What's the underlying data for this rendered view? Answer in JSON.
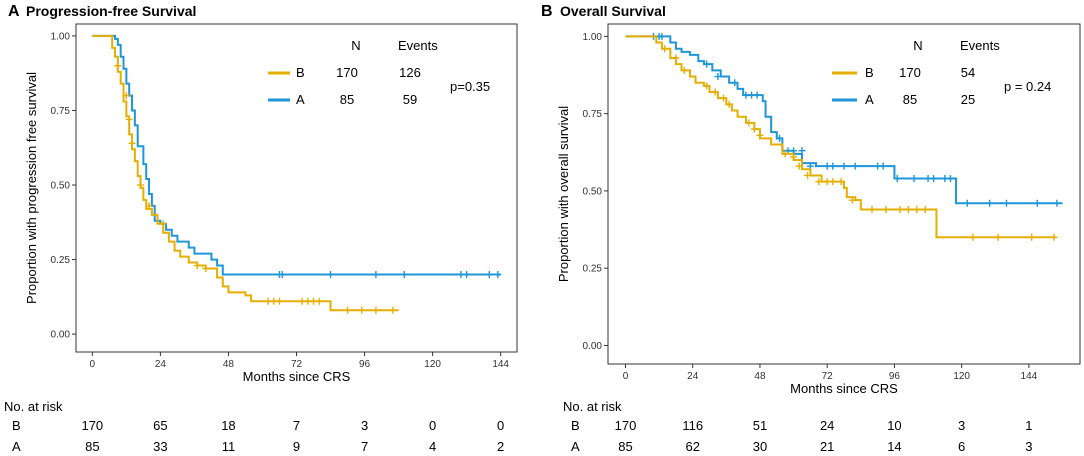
{
  "colors": {
    "B": "#E6AE00",
    "A": "#1F96DA"
  },
  "risk_header": "No. at risk",
  "chart_data": [
    {
      "letter": "A",
      "title": "Progression-free Survival",
      "type": "line",
      "xlabel": "Months since CRS",
      "ylabel": "Proportion with progression free survival",
      "xlim": [
        0,
        144
      ],
      "ylim": [
        0,
        1
      ],
      "xticks": [
        0,
        24,
        48,
        72,
        96,
        120,
        144
      ],
      "yticks": [
        0.0,
        0.25,
        0.5,
        0.75,
        1.0
      ],
      "legend": {
        "header_n": "N",
        "header_events": "Events",
        "rows": [
          {
            "group": "B",
            "n": "170",
            "events": "126",
            "color_key": "B"
          },
          {
            "group": "A",
            "n": "85",
            "events": "59",
            "color_key": "A"
          }
        ]
      },
      "pvalue": "p=0.35",
      "series": [
        {
          "name": "A",
          "color_key": "A",
          "points": [
            [
              0,
              1
            ],
            [
              6,
              1
            ],
            [
              8,
              0.99
            ],
            [
              9,
              0.97
            ],
            [
              10,
              0.93
            ],
            [
              11,
              0.89
            ],
            [
              12,
              0.84
            ],
            [
              13,
              0.8
            ],
            [
              14,
              0.75
            ],
            [
              15,
              0.7
            ],
            [
              16,
              0.63
            ],
            [
              18,
              0.57
            ],
            [
              19,
              0.52
            ],
            [
              20,
              0.47
            ],
            [
              21,
              0.43
            ],
            [
              22,
              0.38
            ],
            [
              24,
              0.37
            ],
            [
              26,
              0.35
            ],
            [
              28,
              0.33
            ],
            [
              30,
              0.31
            ],
            [
              34,
              0.29
            ],
            [
              36,
              0.27
            ],
            [
              42,
              0.25
            ],
            [
              44,
              0.23
            ],
            [
              46,
              0.2
            ],
            [
              144,
              0.2
            ]
          ],
          "censor": [
            [
              66,
              0.2
            ],
            [
              67,
              0.2
            ],
            [
              84,
              0.2
            ],
            [
              100,
              0.2
            ],
            [
              110,
              0.2
            ],
            [
              130,
              0.2
            ],
            [
              132,
              0.2
            ],
            [
              140,
              0.2
            ],
            [
              143,
              0.2
            ]
          ]
        },
        {
          "name": "B",
          "color_key": "B",
          "points": [
            [
              0,
              1
            ],
            [
              6,
              1
            ],
            [
              7,
              0.96
            ],
            [
              8,
              0.93
            ],
            [
              9,
              0.88
            ],
            [
              10,
              0.84
            ],
            [
              11,
              0.78
            ],
            [
              12,
              0.73
            ],
            [
              13,
              0.67
            ],
            [
              14,
              0.62
            ],
            [
              15,
              0.58
            ],
            [
              16,
              0.53
            ],
            [
              17,
              0.49
            ],
            [
              18,
              0.45
            ],
            [
              19,
              0.42
            ],
            [
              21,
              0.4
            ],
            [
              23,
              0.37
            ],
            [
              25,
              0.34
            ],
            [
              27,
              0.31
            ],
            [
              29,
              0.28
            ],
            [
              31,
              0.26
            ],
            [
              34,
              0.24
            ],
            [
              37,
              0.23
            ],
            [
              40,
              0.22
            ],
            [
              44,
              0.19
            ],
            [
              46,
              0.16
            ],
            [
              48,
              0.14
            ],
            [
              54,
              0.13
            ],
            [
              56,
              0.11
            ],
            [
              84,
              0.08
            ],
            [
              108,
              0.08
            ]
          ],
          "censor": [
            [
              9,
              0.9
            ],
            [
              12,
              0.8
            ],
            [
              13,
              0.72
            ],
            [
              14,
              0.64
            ],
            [
              17,
              0.5
            ],
            [
              20,
              0.43
            ],
            [
              25,
              0.37
            ],
            [
              37,
              0.23
            ],
            [
              40,
              0.22
            ],
            [
              62,
              0.11
            ],
            [
              64,
              0.11
            ],
            [
              66,
              0.11
            ],
            [
              74,
              0.11
            ],
            [
              76,
              0.11
            ],
            [
              78,
              0.11
            ],
            [
              80,
              0.11
            ],
            [
              90,
              0.08
            ],
            [
              95,
              0.08
            ],
            [
              100,
              0.08
            ],
            [
              106,
              0.08
            ]
          ]
        }
      ],
      "risk_table": {
        "times": [
          0,
          24,
          48,
          72,
          96,
          120,
          144
        ],
        "rows": [
          {
            "group": "B",
            "values": [
              "170",
              "65",
              "18",
              "7",
              "3",
              "0",
              "0"
            ]
          },
          {
            "group": "A",
            "values": [
              "85",
              "33",
              "11",
              "9",
              "7",
              "4",
              "2"
            ]
          }
        ]
      }
    },
    {
      "letter": "B",
      "title": "Overall Survival",
      "type": "line",
      "xlabel": "Months since CRS",
      "ylabel": "Proportion with overall survival",
      "xlim": [
        0,
        156
      ],
      "ylim": [
        0,
        1
      ],
      "xticks": [
        0,
        24,
        48,
        72,
        96,
        120,
        144
      ],
      "yticks": [
        0.0,
        0.25,
        0.5,
        0.75,
        1.0
      ],
      "legend": {
        "header_n": "N",
        "header_events": "Events",
        "rows": [
          {
            "group": "B",
            "n": "170",
            "events": "54",
            "color_key": "B"
          },
          {
            "group": "A",
            "n": "85",
            "events": "25",
            "color_key": "A"
          }
        ]
      },
      "pvalue": "p = 0.24",
      "series": [
        {
          "name": "A",
          "color_key": "A",
          "points": [
            [
              0,
              1
            ],
            [
              14,
              1
            ],
            [
              16,
              0.98
            ],
            [
              18,
              0.96
            ],
            [
              20,
              0.95
            ],
            [
              23,
              0.94
            ],
            [
              26,
              0.92
            ],
            [
              28,
              0.91
            ],
            [
              31,
              0.89
            ],
            [
              34,
              0.87
            ],
            [
              37,
              0.85
            ],
            [
              40,
              0.83
            ],
            [
              42,
              0.81
            ],
            [
              49,
              0.79
            ],
            [
              50,
              0.74
            ],
            [
              52,
              0.69
            ],
            [
              54,
              0.67
            ],
            [
              56,
              0.63
            ],
            [
              60,
              0.62
            ],
            [
              63,
              0.59
            ],
            [
              68,
              0.58
            ],
            [
              94,
              0.58
            ],
            [
              96,
              0.54
            ],
            [
              118,
              0.54
            ],
            [
              118,
              0.46
            ],
            [
              156,
              0.46
            ]
          ],
          "censor": [
            [
              10,
              1
            ],
            [
              12,
              1
            ],
            [
              13,
              1
            ],
            [
              29,
              0.91
            ],
            [
              33,
              0.87
            ],
            [
              39,
              0.85
            ],
            [
              43,
              0.81
            ],
            [
              45,
              0.81
            ],
            [
              47,
              0.81
            ],
            [
              55,
              0.67
            ],
            [
              58,
              0.63
            ],
            [
              60,
              0.63
            ],
            [
              63,
              0.63
            ],
            [
              66,
              0.58
            ],
            [
              72,
              0.58
            ],
            [
              74,
              0.58
            ],
            [
              78,
              0.58
            ],
            [
              82,
              0.58
            ],
            [
              90,
              0.58
            ],
            [
              92,
              0.58
            ],
            [
              97,
              0.54
            ],
            [
              103,
              0.54
            ],
            [
              108,
              0.54
            ],
            [
              110,
              0.54
            ],
            [
              114,
              0.54
            ],
            [
              116,
              0.54
            ],
            [
              122,
              0.46
            ],
            [
              130,
              0.46
            ],
            [
              136,
              0.46
            ],
            [
              147,
              0.46
            ],
            [
              154,
              0.46
            ]
          ]
        },
        {
          "name": "B",
          "color_key": "B",
          "points": [
            [
              0,
              1
            ],
            [
              9,
              1
            ],
            [
              11,
              0.98
            ],
            [
              13,
              0.96
            ],
            [
              16,
              0.93
            ],
            [
              18,
              0.91
            ],
            [
              20,
              0.89
            ],
            [
              23,
              0.87
            ],
            [
              25,
              0.85
            ],
            [
              28,
              0.84
            ],
            [
              30,
              0.82
            ],
            [
              33,
              0.8
            ],
            [
              36,
              0.78
            ],
            [
              38,
              0.76
            ],
            [
              40,
              0.74
            ],
            [
              43,
              0.72
            ],
            [
              46,
              0.7
            ],
            [
              48,
              0.67
            ],
            [
              52,
              0.65
            ],
            [
              56,
              0.62
            ],
            [
              60,
              0.6
            ],
            [
              63,
              0.57
            ],
            [
              66,
              0.55
            ],
            [
              70,
              0.53
            ],
            [
              78,
              0.51
            ],
            [
              79,
              0.48
            ],
            [
              82,
              0.47
            ],
            [
              84,
              0.44
            ],
            [
              110,
              0.44
            ],
            [
              111,
              0.35
            ],
            [
              153,
              0.35
            ]
          ],
          "censor": [
            [
              14,
              0.96
            ],
            [
              18,
              0.93
            ],
            [
              21,
              0.89
            ],
            [
              29,
              0.84
            ],
            [
              32,
              0.82
            ],
            [
              35,
              0.8
            ],
            [
              37,
              0.78
            ],
            [
              44,
              0.72
            ],
            [
              46,
              0.7
            ],
            [
              48,
              0.68
            ],
            [
              57,
              0.62
            ],
            [
              60,
              0.61
            ],
            [
              62,
              0.58
            ],
            [
              65,
              0.55
            ],
            [
              69,
              0.53
            ],
            [
              72,
              0.53
            ],
            [
              74,
              0.53
            ],
            [
              77,
              0.53
            ],
            [
              81,
              0.47
            ],
            [
              88,
              0.44
            ],
            [
              93,
              0.44
            ],
            [
              98,
              0.44
            ],
            [
              101,
              0.44
            ],
            [
              104,
              0.44
            ],
            [
              107,
              0.44
            ],
            [
              124,
              0.35
            ],
            [
              133,
              0.35
            ],
            [
              145,
              0.35
            ],
            [
              153,
              0.35
            ]
          ]
        }
      ],
      "risk_table": {
        "times": [
          0,
          24,
          48,
          72,
          96,
          120,
          144
        ],
        "rows": [
          {
            "group": "B",
            "values": [
              "170",
              "116",
              "51",
              "24",
              "10",
              "3",
              "1"
            ]
          },
          {
            "group": "A",
            "values": [
              "85",
              "62",
              "30",
              "21",
              "14",
              "6",
              "3"
            ]
          }
        ]
      }
    }
  ]
}
